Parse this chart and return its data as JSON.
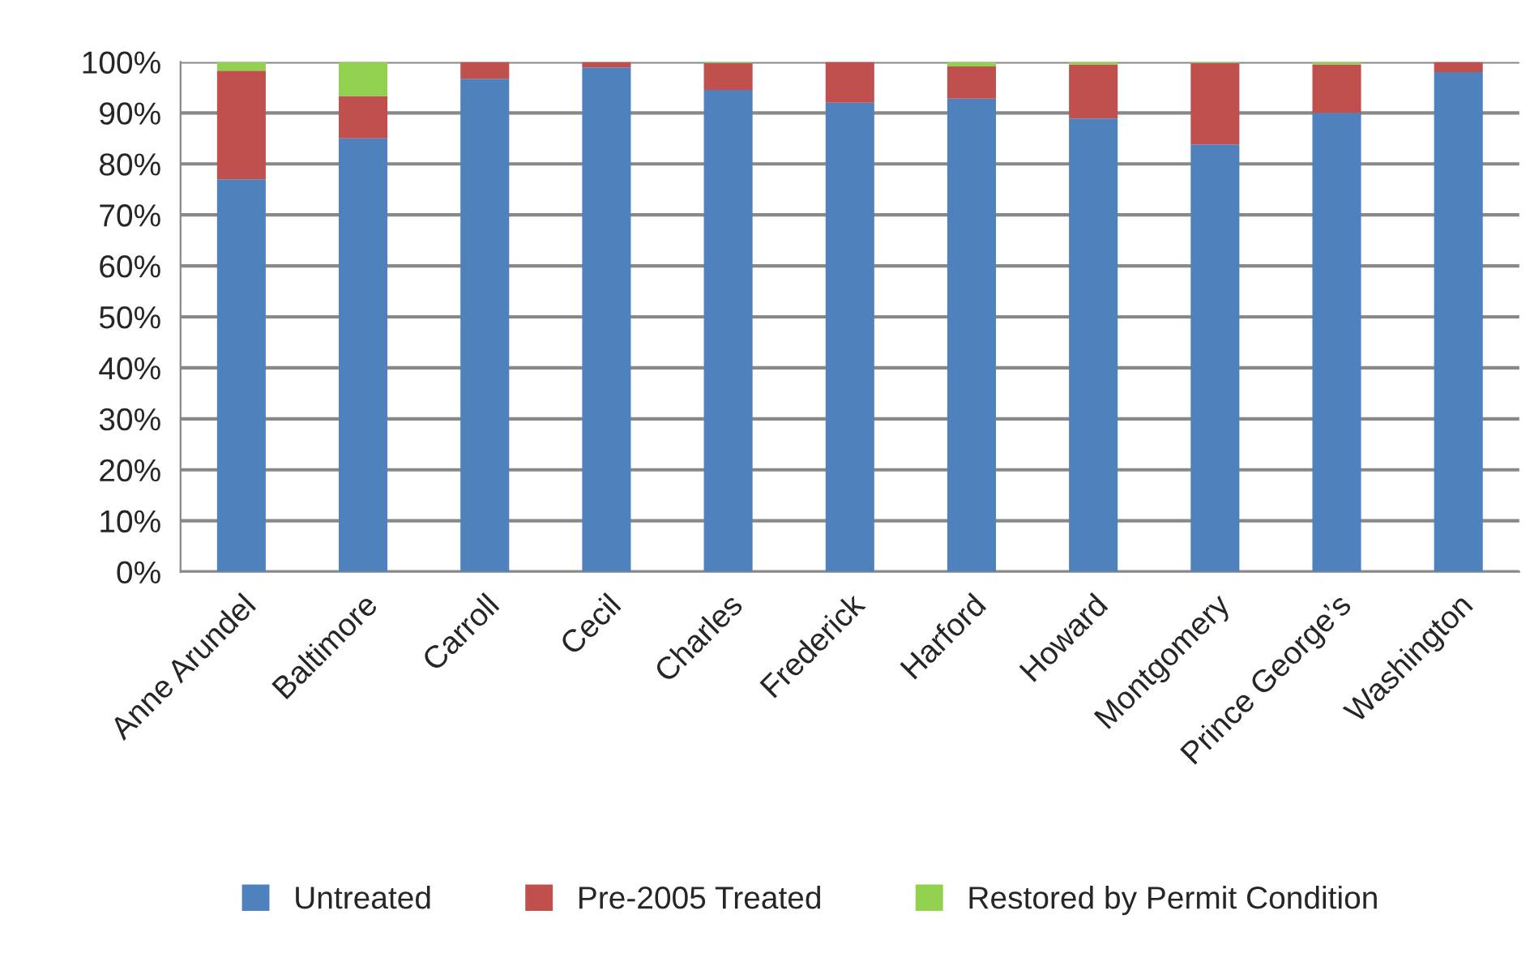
{
  "chart_data": {
    "type": "bar",
    "stacked": true,
    "categories": [
      "Anne Arundel",
      "Baltimore",
      "Carroll",
      "Cecil",
      "Charles",
      "Frederick",
      "Harford",
      "Howard",
      "Montgomery",
      "Prince George’s",
      "Washington"
    ],
    "series": [
      {
        "name": "Untreated",
        "color": "#4f81bd",
        "values": [
          77,
          85,
          96.7,
          98.9,
          94.5,
          92,
          92.8,
          88.9,
          83.8,
          90,
          98
        ]
      },
      {
        "name": "Pre-2005 Treated",
        "color": "#c0504d",
        "values": [
          21.3,
          8.3,
          3.3,
          1.1,
          5.3,
          8,
          6.3,
          10.6,
          16,
          9.5,
          2
        ]
      },
      {
        "name": "Restored by Permit Condition",
        "color": "#92d050",
        "values": [
          1.7,
          6.7,
          0,
          0,
          0.2,
          0,
          0.9,
          0.5,
          0.2,
          0.5,
          0
        ]
      }
    ],
    "ylim": [
      0,
      100
    ],
    "yticks": [
      {
        "value": 0,
        "label": "0%"
      },
      {
        "value": 10,
        "label": "10%"
      },
      {
        "value": 20,
        "label": "20%"
      },
      {
        "value": 30,
        "label": "30%"
      },
      {
        "value": 40,
        "label": "40%"
      },
      {
        "value": 50,
        "label": "50%"
      },
      {
        "value": 60,
        "label": "60%"
      },
      {
        "value": 70,
        "label": "70%"
      },
      {
        "value": 80,
        "label": "80%"
      },
      {
        "value": 90,
        "label": "90%"
      },
      {
        "value": 100,
        "label": "100%"
      }
    ],
    "grid": "y",
    "legend": "bottom"
  }
}
